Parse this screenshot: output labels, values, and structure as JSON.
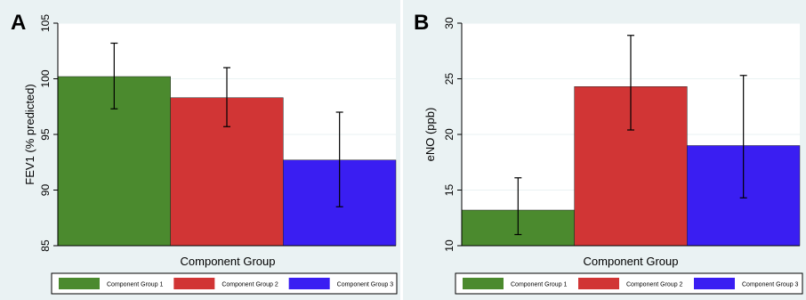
{
  "chart_data": [
    {
      "panel": "A",
      "type": "bar",
      "xlabel": "Component Group",
      "ylabel": "FEV1 (% predicted)",
      "ylim": [
        85,
        105
      ],
      "yticks": [
        85,
        90,
        95,
        100,
        105
      ],
      "grid": true,
      "legend_position": "bottom",
      "series": [
        {
          "name": "Component Group 1",
          "color": "#4b8a2e",
          "value": 100.2,
          "ci_low": 97.3,
          "ci_high": 103.2
        },
        {
          "name": "Component Group 2",
          "color": "#d13535",
          "value": 98.3,
          "ci_low": 95.7,
          "ci_high": 101.0
        },
        {
          "name": "Component Group 3",
          "color": "#3a1ef2",
          "value": 92.7,
          "ci_low": 88.5,
          "ci_high": 97.0
        }
      ]
    },
    {
      "panel": "B",
      "type": "bar",
      "xlabel": "Component Group",
      "ylabel": "eNO (ppb)",
      "ylim": [
        10,
        30
      ],
      "yticks": [
        10,
        15,
        20,
        25,
        30
      ],
      "grid": true,
      "legend_position": "bottom",
      "series": [
        {
          "name": "Component Group 1",
          "color": "#4b8a2e",
          "value": 13.2,
          "ci_low": 11.0,
          "ci_high": 16.1
        },
        {
          "name": "Component Group 2",
          "color": "#d13535",
          "value": 24.3,
          "ci_low": 20.4,
          "ci_high": 28.9
        },
        {
          "name": "Component Group 3",
          "color": "#3a1ef2",
          "value": 19.0,
          "ci_low": 14.3,
          "ci_high": 25.3
        }
      ]
    }
  ]
}
